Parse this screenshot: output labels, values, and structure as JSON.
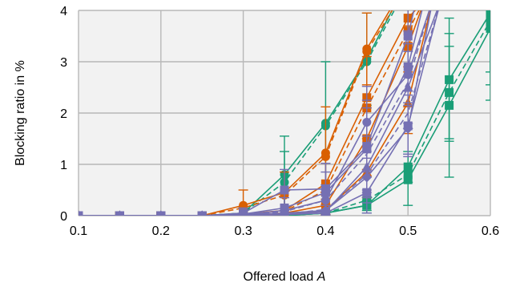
{
  "chart_data": {
    "type": "line",
    "title": "",
    "xlabel": "Offered load",
    "xlabel_var": "A",
    "ylabel": "Blocking ratio in %",
    "xlim": [
      0.1,
      0.6
    ],
    "ylim": [
      0,
      4
    ],
    "xticks": [
      "0.1",
      "0.2",
      "0.3",
      "0.4",
      "0.5",
      "0.6"
    ],
    "yticks": [
      "0",
      "1",
      "2",
      "3",
      "4"
    ],
    "grid": true,
    "legend": "none",
    "plot_background": "#f2f2f2",
    "colors": {
      "green": "#1a9e77",
      "orange": "#d95f02",
      "purple": "#7570b3"
    },
    "series": [
      {
        "color": "#1a9e77",
        "marker": "circle",
        "dashed": false,
        "x": [
          0.1,
          0.15,
          0.2,
          0.25,
          0.3,
          0.35,
          0.4,
          0.45,
          0.5
        ],
        "y": [
          0,
          0,
          0,
          0,
          0.05,
          0.8,
          1.8,
          3.05,
          4.6
        ],
        "err": [
          0,
          0,
          0,
          0,
          0.1,
          0.75,
          1.2,
          0.9,
          0
        ]
      },
      {
        "color": "#1a9e77",
        "marker": "circle",
        "dashed": true,
        "x": [
          0.1,
          0.15,
          0.2,
          0.25,
          0.3,
          0.35,
          0.4,
          0.45,
          0.5
        ],
        "y": [
          0,
          0,
          0,
          0,
          0.05,
          0.65,
          1.75,
          3.0,
          4.5
        ],
        "err": [
          0,
          0,
          0,
          0,
          0,
          0.6,
          0,
          0,
          0
        ]
      },
      {
        "color": "#1a9e77",
        "marker": "square",
        "dashed": false,
        "x": [
          0.1,
          0.15,
          0.2,
          0.25,
          0.3,
          0.35,
          0.4,
          0.45,
          0.5,
          0.55,
          0.6
        ],
        "y": [
          0,
          0,
          0,
          0,
          0,
          0,
          0.05,
          0.2,
          0.95,
          2.65,
          3.95
        ],
        "err": [
          0,
          0,
          0,
          0,
          0,
          0,
          0.05,
          0.15,
          0.3,
          1.2,
          1.4
        ]
      },
      {
        "color": "#1a9e77",
        "marker": "square",
        "dashed": false,
        "x": [
          0.1,
          0.15,
          0.2,
          0.25,
          0.3,
          0.35,
          0.4,
          0.45,
          0.5,
          0.55,
          0.6
        ],
        "y": [
          0,
          0,
          0,
          0,
          0,
          0,
          0.05,
          0.2,
          0.7,
          2.15,
          3.65
        ],
        "err": [
          0,
          0,
          0,
          0,
          0,
          0,
          0,
          0.1,
          0.5,
          1.4,
          1.4
        ]
      },
      {
        "color": "#1a9e77",
        "marker": "square",
        "dashed": true,
        "x": [
          0.1,
          0.15,
          0.2,
          0.25,
          0.3,
          0.35,
          0.4,
          0.45,
          0.5,
          0.55,
          0.6
        ],
        "y": [
          0,
          0,
          0,
          0,
          0,
          0,
          0.05,
          0.3,
          0.8,
          2.4,
          3.8
        ],
        "err": [
          0,
          0,
          0,
          0,
          0,
          0,
          0,
          0,
          0,
          0.9,
          1.0
        ]
      },
      {
        "color": "#d95f02",
        "marker": "circle",
        "dashed": false,
        "x": [
          0.1,
          0.15,
          0.2,
          0.25,
          0.3,
          0.35,
          0.4,
          0.45,
          0.5
        ],
        "y": [
          0,
          0,
          0,
          0,
          0.2,
          0.45,
          1.22,
          3.25,
          4.6
        ],
        "err": [
          0,
          0,
          0,
          0,
          0.3,
          0.4,
          0.9,
          0.7,
          0
        ]
      },
      {
        "color": "#d95f02",
        "marker": "circle",
        "dashed": true,
        "x": [
          0.1,
          0.15,
          0.2,
          0.25,
          0.3,
          0.35,
          0.4,
          0.45,
          0.5
        ],
        "y": [
          0,
          0,
          0,
          0,
          0.15,
          0.4,
          1.15,
          3.2,
          4.5
        ],
        "err": [
          0,
          0,
          0,
          0,
          0,
          0,
          0,
          0,
          0
        ]
      },
      {
        "color": "#d95f02",
        "marker": "square",
        "dashed": false,
        "x": [
          0.1,
          0.15,
          0.2,
          0.25,
          0.3,
          0.35,
          0.4,
          0.45,
          0.5,
          0.52
        ],
        "y": [
          0,
          0,
          0,
          0,
          0.03,
          0.1,
          0.62,
          2.3,
          3.85,
          4.2
        ],
        "err": [
          0,
          0,
          0,
          0,
          0,
          0,
          0.4,
          0.8,
          0.5,
          0
        ]
      },
      {
        "color": "#d95f02",
        "marker": "square",
        "dashed": false,
        "x": [
          0.1,
          0.15,
          0.2,
          0.25,
          0.3,
          0.35,
          0.4,
          0.45,
          0.5,
          0.52
        ],
        "y": [
          0,
          0,
          0,
          0,
          0.02,
          0.05,
          0.2,
          1.5,
          3.3,
          4.2
        ],
        "err": [
          0,
          0,
          0,
          0,
          0,
          0,
          0.2,
          0.6,
          0.4,
          0
        ]
      },
      {
        "color": "#d95f02",
        "marker": "square",
        "dashed": true,
        "x": [
          0.1,
          0.15,
          0.2,
          0.25,
          0.3,
          0.35,
          0.4,
          0.45,
          0.5,
          0.52
        ],
        "y": [
          0,
          0,
          0,
          0,
          0.02,
          0.08,
          0.5,
          2.1,
          3.6,
          4.2
        ],
        "err": [
          0,
          0,
          0,
          0,
          0,
          0,
          0,
          0,
          0,
          0
        ]
      },
      {
        "color": "#d95f02",
        "marker": "triangle",
        "dashed": false,
        "x": [
          0.1,
          0.15,
          0.2,
          0.25,
          0.3,
          0.35,
          0.4,
          0.45,
          0.5,
          0.53
        ],
        "y": [
          0,
          0,
          0,
          0,
          0,
          0.02,
          0.1,
          0.85,
          2.2,
          4.2
        ],
        "err": [
          0,
          0,
          0,
          0,
          0,
          0,
          0,
          0.5,
          0.6,
          0
        ]
      },
      {
        "color": "#7570b3",
        "marker": "square",
        "dashed": false,
        "x": [
          0.1,
          0.15,
          0.2,
          0.25,
          0.3,
          0.35,
          0.4,
          0.45,
          0.5,
          0.51
        ],
        "y": [
          0,
          0,
          0,
          0,
          0.05,
          0.5,
          0.52,
          1.35,
          3.5,
          4.2
        ],
        "err": [
          0,
          0,
          0,
          0,
          0.1,
          0.4,
          0.5,
          0.9,
          0.8,
          0
        ]
      },
      {
        "color": "#7570b3",
        "marker": "square",
        "dashed": false,
        "x": [
          0.1,
          0.15,
          0.2,
          0.25,
          0.3,
          0.35,
          0.4,
          0.45,
          0.5,
          0.52
        ],
        "y": [
          0,
          0,
          0,
          0,
          0.03,
          0.15,
          0.45,
          1.3,
          2.9,
          4.2
        ],
        "err": [
          0,
          0,
          0,
          0,
          0,
          0.2,
          0.4,
          0.8,
          0.7,
          0
        ]
      },
      {
        "color": "#7570b3",
        "marker": "circle",
        "dashed": false,
        "x": [
          0.1,
          0.15,
          0.2,
          0.25,
          0.3,
          0.35,
          0.4,
          0.45,
          0.5,
          0.53
        ],
        "y": [
          0,
          0,
          0,
          0,
          0.02,
          0.1,
          0.3,
          1.82,
          2.75,
          4.2
        ],
        "err": [
          0,
          0,
          0,
          0,
          0,
          0,
          0.3,
          0.7,
          0.6,
          0
        ]
      },
      {
        "color": "#7570b3",
        "marker": "diamond",
        "dashed": false,
        "x": [
          0.1,
          0.15,
          0.2,
          0.25,
          0.3,
          0.35,
          0.4,
          0.45,
          0.5,
          0.53
        ],
        "y": [
          0,
          0,
          0,
          0,
          0.02,
          0.05,
          0.1,
          0.75,
          1.7,
          4.2
        ],
        "err": [
          0,
          0,
          0,
          0,
          0,
          0,
          0.1,
          0.5,
          0.5,
          0
        ]
      },
      {
        "color": "#7570b3",
        "marker": "triangle",
        "dashed": false,
        "x": [
          0.1,
          0.15,
          0.2,
          0.25,
          0.3,
          0.35,
          0.4,
          0.45,
          0.5,
          0.54
        ],
        "y": [
          0,
          0,
          0,
          0,
          0,
          0.02,
          0.08,
          0.95,
          2.5,
          4.2
        ],
        "err": [
          0,
          0,
          0,
          0,
          0,
          0,
          0,
          0.6,
          0.7,
          0
        ]
      },
      {
        "color": "#7570b3",
        "marker": "square",
        "dashed": false,
        "x": [
          0.1,
          0.15,
          0.2,
          0.25,
          0.3,
          0.35,
          0.4,
          0.45,
          0.5,
          0.54
        ],
        "y": [
          0,
          0,
          0,
          0,
          0,
          0.02,
          0.05,
          0.45,
          1.75,
          4.2
        ],
        "err": [
          0,
          0,
          0,
          0,
          0,
          0,
          0.05,
          0.4,
          0.6,
          0
        ]
      },
      {
        "color": "#7570b3",
        "marker": "none",
        "dashed": true,
        "x": [
          0.1,
          0.15,
          0.2,
          0.25,
          0.3,
          0.35,
          0.4,
          0.45,
          0.5,
          0.53
        ],
        "y": [
          0,
          0,
          0,
          0,
          0.02,
          0.08,
          0.3,
          1.2,
          2.6,
          4.2
        ],
        "err": [
          0,
          0,
          0,
          0,
          0,
          0,
          0,
          0,
          0,
          0
        ]
      },
      {
        "color": "#7570b3",
        "marker": "none",
        "dashed": true,
        "x": [
          0.1,
          0.15,
          0.2,
          0.25,
          0.3,
          0.35,
          0.4,
          0.45,
          0.5,
          0.54
        ],
        "y": [
          0,
          0,
          0,
          0,
          0,
          0.03,
          0.12,
          0.8,
          2.0,
          4.2
        ],
        "err": [
          0,
          0,
          0,
          0,
          0,
          0,
          0,
          0,
          0,
          0
        ]
      }
    ]
  }
}
